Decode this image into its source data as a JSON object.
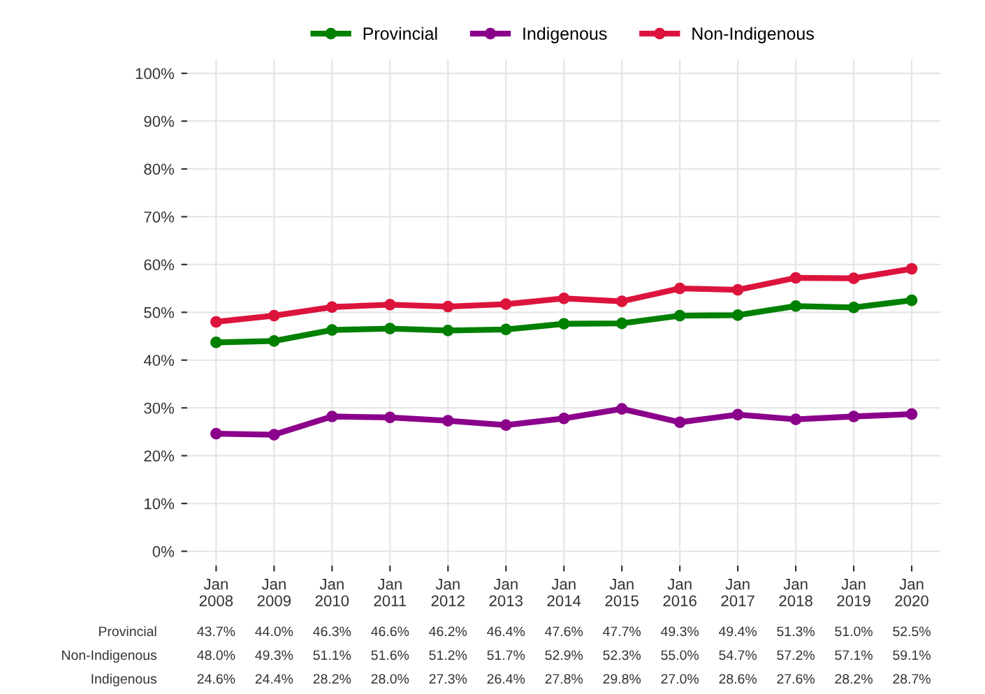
{
  "chart_data": {
    "type": "line",
    "categories": [
      "Jan\n2008",
      "Jan\n2009",
      "Jan\n2010",
      "Jan\n2011",
      "Jan\n2012",
      "Jan\n2013",
      "Jan\n2014",
      "Jan\n2015",
      "Jan\n2016",
      "Jan\n2017",
      "Jan\n2018",
      "Jan\n2019",
      "Jan\n2020"
    ],
    "series": [
      {
        "name": "Provincial",
        "color": "#008000",
        "values": [
          43.7,
          44.0,
          46.3,
          46.6,
          46.2,
          46.4,
          47.6,
          47.7,
          49.3,
          49.4,
          51.3,
          51.0,
          52.5
        ],
        "value_labels": [
          "43.7%",
          "44.0%",
          "46.3%",
          "46.6%",
          "46.2%",
          "46.4%",
          "47.6%",
          "47.7%",
          "49.3%",
          "49.4%",
          "51.3%",
          "51.0%",
          "52.5%"
        ]
      },
      {
        "name": "Indigenous",
        "color": "#8b008b",
        "values": [
          24.6,
          24.4,
          28.2,
          28.0,
          27.3,
          26.4,
          27.8,
          29.8,
          27.0,
          28.6,
          27.6,
          28.2,
          28.7
        ],
        "value_labels": [
          "24.6%",
          "24.4%",
          "28.2%",
          "28.0%",
          "27.3%",
          "26.4%",
          "27.8%",
          "29.8%",
          "27.0%",
          "28.6%",
          "27.6%",
          "28.2%",
          "28.7%"
        ]
      },
      {
        "name": "Non-Indigenous",
        "color": "#dc143c",
        "values": [
          48.0,
          49.3,
          51.1,
          51.6,
          51.2,
          51.7,
          52.9,
          52.3,
          55.0,
          54.7,
          57.2,
          57.1,
          59.1
        ],
        "value_labels": [
          "48.0%",
          "49.3%",
          "51.1%",
          "51.6%",
          "51.2%",
          "51.7%",
          "52.9%",
          "52.3%",
          "55.0%",
          "54.7%",
          "57.2%",
          "57.1%",
          "59.1%"
        ]
      }
    ],
    "ylim": [
      -3,
      103
    ],
    "yticks": [
      {
        "value": 0,
        "label": "0%"
      },
      {
        "value": 10,
        "label": "10%"
      },
      {
        "value": 20,
        "label": "20%"
      },
      {
        "value": 30,
        "label": "30%"
      },
      {
        "value": 40,
        "label": "40%"
      },
      {
        "value": 50,
        "label": "50%"
      },
      {
        "value": 60,
        "label": "60%"
      },
      {
        "value": 70,
        "label": "70%"
      },
      {
        "value": 80,
        "label": "80%"
      },
      {
        "value": 90,
        "label": "90%"
      },
      {
        "value": 100,
        "label": "100%"
      }
    ],
    "grid": true,
    "legend": "top",
    "marker": "circle",
    "line_style": "solid"
  }
}
